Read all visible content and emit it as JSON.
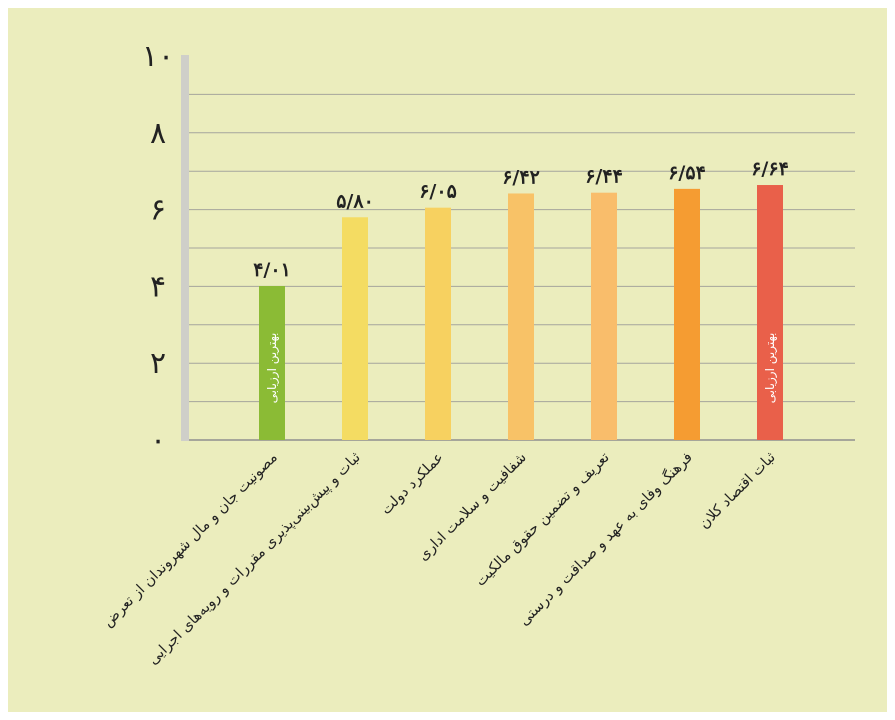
{
  "chart_data": {
    "type": "bar",
    "title": "",
    "xlabel": "",
    "ylabel": "",
    "ylim": [
      0,
      10
    ],
    "yticks": [
      {
        "value": 0,
        "label": "۰"
      },
      {
        "value": 2,
        "label": "۲"
      },
      {
        "value": 4,
        "label": "۴"
      },
      {
        "value": 6,
        "label": "۶"
      },
      {
        "value": 8,
        "label": "۸"
      },
      {
        "value": 10,
        "label": "۱۰"
      }
    ],
    "grid": true,
    "categories": [
      "مصونیت جان و مال شهروندان از تعرض",
      "ثبات و پیش‌بینی‌پذیری مقررات و رویه‌های اجرایی",
      "عملکرد دولت",
      "شفافیت و سلامت اداری",
      "تعریف و تضمین حقوق مالکیت",
      "فرهنگ وفای به عهد و صداقت و درستی",
      "ثبات اقتصاد کلان"
    ],
    "values": [
      4.01,
      5.8,
      6.05,
      6.42,
      6.44,
      6.54,
      6.64
    ],
    "value_labels": [
      "۴/۰۱",
      "۵/۸۰",
      "۶/۰۵",
      "۶/۴۲",
      "۶/۴۴",
      "۶/۵۴",
      "۶/۶۴"
    ],
    "colors": [
      "#8bbb35",
      "#f4dc62",
      "#f7d160",
      "#f8c267",
      "#f9bd6b",
      "#f59c32",
      "#e9604a"
    ],
    "annotations": [
      {
        "category_index": 0,
        "text": "بهترین ارزیابی"
      },
      {
        "category_index": 6,
        "text": "بهترین ارزیابی"
      }
    ]
  }
}
